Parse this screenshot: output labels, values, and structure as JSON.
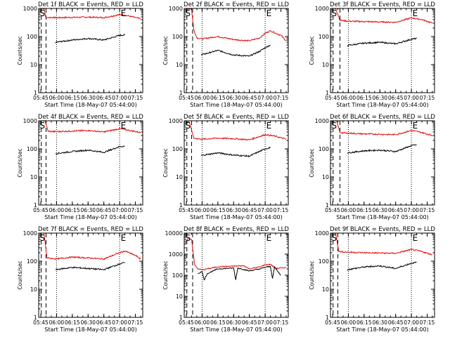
{
  "figure": {
    "xlabel_template": "Start Time ({date})",
    "x_ticks": [
      "05:45",
      "06:00",
      "06:15",
      "06:30",
      "06:45",
      "07:00",
      "07:15"
    ],
    "x_range": [
      "05:43",
      "07:22"
    ],
    "y_ticks": [
      "1",
      "10",
      "100",
      "1000"
    ],
    "ylabel": "Counts/sec",
    "colors": {
      "events": "#000000",
      "lld": "#e01010",
      "axes": "#000000"
    },
    "marker_s": "S",
    "marker_e": "E"
  },
  "chart_data": [
    {
      "type": "line",
      "title": "Det 1f BLACK = Events, RED = LLD",
      "date": "18-May-07 05:44:00",
      "yscale": "log",
      "ylim": [
        1,
        1000
      ],
      "x_range": [
        "05:43",
        "07:22"
      ],
      "x_ticks": [
        "05:45",
        "06:00",
        "06:15",
        "06:30",
        "06:45",
        "07:00",
        "07:15"
      ],
      "y_ticks": [
        "1",
        "10",
        "100",
        "1000"
      ],
      "dashed_lines": [
        "05:45:30",
        "05:50"
      ],
      "dotted_lines": [
        "06:00",
        "07:00"
      ],
      "marker_s_at": "05:44",
      "marker_e_at": "07:01",
      "series": [
        {
          "name": "LLD",
          "color": "#e01010",
          "x": [
            "05:44",
            "05:48",
            "05:50",
            "05:52",
            "06:00",
            "06:15",
            "06:30",
            "06:45",
            "07:00",
            "07:05",
            "07:15",
            "07:20"
          ],
          "y": [
            1000,
            1000,
            450,
            480,
            470,
            480,
            490,
            470,
            600,
            580,
            470,
            430
          ]
        },
        {
          "name": "Events",
          "color": "#000000",
          "x": [
            "05:59",
            "06:15",
            "06:30",
            "06:45",
            "07:00",
            "07:05"
          ],
          "y": [
            62,
            75,
            85,
            75,
            110,
            115
          ]
        }
      ]
    },
    {
      "type": "line",
      "title": "Det 2f BLACK = Events, RED = LLD",
      "date": "18-May-07 05:44:00",
      "yscale": "log",
      "ylim": [
        1,
        1000
      ],
      "x_range": [
        "05:43",
        "07:22"
      ],
      "x_ticks": [
        "05:45",
        "06:00",
        "06:15",
        "06:30",
        "06:45",
        "07:00",
        "07:15"
      ],
      "y_ticks": [
        "1",
        "10",
        "100",
        "1000"
      ],
      "dashed_lines": [
        "05:45:30",
        "05:51"
      ],
      "dotted_lines": [
        "06:00",
        "07:00"
      ],
      "marker_s_at": "05:44",
      "marker_e_at": "07:01",
      "series": [
        {
          "name": "LLD",
          "color": "#e01010",
          "x": [
            "05:44",
            "05:50",
            "05:52",
            "05:55",
            "06:00",
            "06:15",
            "06:30",
            "06:45",
            "06:55",
            "07:00",
            "07:05",
            "07:15",
            "07:20"
          ],
          "y": [
            1000,
            950,
            180,
            90,
            82,
            100,
            78,
            70,
            90,
            130,
            160,
            110,
            70
          ]
        },
        {
          "name": "Events",
          "color": "#000000",
          "x": [
            "05:59",
            "06:15",
            "06:30",
            "06:45",
            "06:55",
            "07:00",
            "07:05"
          ],
          "y": [
            22,
            32,
            22,
            20,
            30,
            40,
            50
          ]
        }
      ]
    },
    {
      "type": "line",
      "title": "Det 3f BLACK = Events, RED = LLD",
      "date": "18-May-07 05:44:00",
      "yscale": "log",
      "ylim": [
        1,
        1000
      ],
      "x_range": [
        "05:43",
        "07:22"
      ],
      "x_ticks": [
        "05:45",
        "06:00",
        "06:15",
        "06:30",
        "06:45",
        "07:00",
        "07:15"
      ],
      "y_ticks": [
        "1",
        "10",
        "100",
        "1000"
      ],
      "dashed_lines": [
        "05:45:30",
        "05:52"
      ],
      "dotted_lines": [
        "06:00",
        "07:00"
      ],
      "marker_s_at": "05:44",
      "marker_e_at": "07:01",
      "series": [
        {
          "name": "LLD",
          "color": "#e01010",
          "x": [
            "05:44",
            "05:48",
            "05:52",
            "06:00",
            "06:15",
            "06:30",
            "06:45",
            "07:00",
            "07:10",
            "07:20"
          ],
          "y": [
            1000,
            1000,
            380,
            350,
            340,
            330,
            320,
            460,
            400,
            300
          ]
        },
        {
          "name": "Events",
          "color": "#000000",
          "x": [
            "05:59",
            "06:15",
            "06:30",
            "06:45",
            "07:00",
            "07:05"
          ],
          "y": [
            48,
            58,
            62,
            55,
            80,
            85
          ]
        }
      ]
    },
    {
      "type": "line",
      "title": "Det 4f BLACK = Events, RED = LLD",
      "date": "18-May-07 05:44:00",
      "yscale": "log",
      "ylim": [
        1,
        1000
      ],
      "x_range": [
        "05:43",
        "07:22"
      ],
      "x_ticks": [
        "05:45",
        "06:00",
        "06:15",
        "06:30",
        "06:45",
        "07:00",
        "07:15"
      ],
      "y_ticks": [
        "1",
        "10",
        "100",
        "1000"
      ],
      "dashed_lines": [
        "05:45:30",
        "05:50"
      ],
      "dotted_lines": [
        "06:00",
        "07:00"
      ],
      "marker_s_at": "05:44",
      "marker_e_at": "07:01",
      "series": [
        {
          "name": "LLD",
          "color": "#e01010",
          "x": [
            "05:44",
            "05:49",
            "05:52",
            "06:00",
            "06:15",
            "06:30",
            "06:45",
            "07:00",
            "07:10",
            "07:20"
          ],
          "y": [
            1000,
            1000,
            420,
            410,
            430,
            450,
            400,
            520,
            450,
            380
          ]
        },
        {
          "name": "Events",
          "color": "#000000",
          "x": [
            "05:59",
            "06:15",
            "06:30",
            "06:45",
            "07:00",
            "07:05"
          ],
          "y": [
            68,
            80,
            90,
            75,
            120,
            125
          ]
        }
      ]
    },
    {
      "type": "line",
      "title": "Det 5f BLACK = Events, RED = LLD",
      "date": "18-May-07 05:44:00",
      "yscale": "log",
      "ylim": [
        1,
        1000
      ],
      "x_range": [
        "05:43",
        "07:22"
      ],
      "x_ticks": [
        "05:45",
        "06:00",
        "06:15",
        "06:30",
        "06:45",
        "07:00",
        "07:15"
      ],
      "y_ticks": [
        "1",
        "10",
        "100",
        "1000"
      ],
      "dashed_lines": [
        "05:45:30",
        "05:50"
      ],
      "dotted_lines": [
        "06:00",
        "07:00"
      ],
      "marker_s_at": "05:44",
      "marker_e_at": "07:01",
      "series": [
        {
          "name": "LLD",
          "color": "#e01010",
          "x": [
            "05:44",
            "05:48",
            "05:52",
            "06:00",
            "06:15",
            "06:30",
            "06:45",
            "07:00",
            "07:10",
            "07:20"
          ],
          "y": [
            1000,
            900,
            240,
            220,
            240,
            230,
            210,
            320,
            280,
            220
          ]
        },
        {
          "name": "Events",
          "color": "#000000",
          "x": [
            "05:59",
            "06:15",
            "06:30",
            "06:45",
            "07:00",
            "07:05"
          ],
          "y": [
            58,
            72,
            60,
            55,
            100,
            110
          ]
        }
      ]
    },
    {
      "type": "line",
      "title": "Det 6f BLACK = Events, RED = LLD",
      "date": "18-May-07 05:44:00",
      "yscale": "log",
      "ylim": [
        1,
        1000
      ],
      "x_range": [
        "05:43",
        "07:22"
      ],
      "x_ticks": [
        "05:45",
        "06:00",
        "06:15",
        "06:30",
        "06:45",
        "07:00",
        "07:15"
      ],
      "y_ticks": [
        "1",
        "10",
        "100",
        "1000"
      ],
      "dashed_lines": [
        "05:45:30",
        "05:52"
      ],
      "dotted_lines": [
        "06:00",
        "07:00"
      ],
      "marker_s_at": "05:44",
      "marker_e_at": "07:01",
      "series": [
        {
          "name": "LLD",
          "color": "#e01010",
          "x": [
            "05:44",
            "05:49",
            "05:52",
            "06:00",
            "06:15",
            "06:30",
            "06:45",
            "07:00",
            "07:10",
            "07:20"
          ],
          "y": [
            1000,
            950,
            380,
            360,
            340,
            330,
            320,
            450,
            380,
            300
          ]
        },
        {
          "name": "Events",
          "color": "#000000",
          "x": [
            "05:59",
            "06:15",
            "06:30",
            "06:45",
            "07:00",
            "07:05"
          ],
          "y": [
            72,
            85,
            90,
            80,
            130,
            140
          ]
        }
      ]
    },
    {
      "type": "line",
      "title": "Det 7f BLACK = Events, RED = LLD",
      "date": "18-May-07 05:44:00",
      "yscale": "log",
      "ylim": [
        1,
        1000
      ],
      "x_range": [
        "05:43",
        "07:22"
      ],
      "x_ticks": [
        "05:45",
        "06:00",
        "06:15",
        "06:30",
        "06:45",
        "07:00",
        "07:15"
      ],
      "y_ticks": [
        "1",
        "10",
        "100",
        "1000"
      ],
      "dashed_lines": [
        "05:45:30",
        "05:50"
      ],
      "dotted_lines": [
        "06:00",
        "07:00"
      ],
      "marker_s_at": "05:44",
      "marker_e_at": "07:01",
      "series": [
        {
          "name": "LLD",
          "color": "#e01010",
          "x": [
            "05:44",
            "05:48",
            "05:51",
            "06:00",
            "06:15",
            "06:30",
            "06:45",
            "07:00",
            "07:05",
            "07:15",
            "07:20"
          ],
          "y": [
            1000,
            1000,
            130,
            120,
            140,
            130,
            120,
            200,
            230,
            160,
            120
          ]
        },
        {
          "name": "Events",
          "color": "#000000",
          "x": [
            "05:59",
            "06:15",
            "06:30",
            "06:45",
            "07:00",
            "07:05"
          ],
          "y": [
            50,
            60,
            55,
            50,
            80,
            90
          ]
        }
      ]
    },
    {
      "type": "line",
      "title": "Det 8f BLACK = Events, RED = LLD",
      "date": "18-May-07 05:44:00",
      "yscale": "log",
      "ylim": [
        1,
        10000
      ],
      "x_range": [
        "05:43",
        "07:22"
      ],
      "x_ticks": [
        "05:45",
        "06:00",
        "06:15",
        "06:30",
        "06:45",
        "07:00",
        "07:15"
      ],
      "y_ticks": [
        "1",
        "10",
        "100",
        "1000",
        "10000"
      ],
      "dashed_lines": [
        "05:45:30",
        "05:51"
      ],
      "dotted_lines": [
        "06:00",
        "07:00"
      ],
      "marker_s_at": "05:44",
      "marker_e_at": "07:01",
      "series": [
        {
          "name": "LLD",
          "color": "#e01010",
          "x": [
            "05:44",
            "05:47",
            "05:50",
            "05:53",
            "05:56",
            "06:00",
            "06:15",
            "06:30",
            "06:40",
            "06:45",
            "06:55",
            "07:00",
            "07:05",
            "07:10",
            "07:20"
          ],
          "y": [
            3000,
            6000,
            5000,
            300,
            200,
            180,
            250,
            270,
            280,
            200,
            250,
            310,
            330,
            210,
            230
          ]
        },
        {
          "name": "Events",
          "color": "#000000",
          "x": [
            "05:56",
            "06:00",
            "06:02",
            "06:05",
            "06:15",
            "06:30",
            "06:32",
            "06:34",
            "06:45",
            "06:55",
            "07:00",
            "07:05",
            "07:07",
            "07:09",
            "07:12",
            "07:15"
          ],
          "y": [
            120,
            150,
            60,
            120,
            200,
            220,
            60,
            220,
            160,
            200,
            240,
            260,
            70,
            250,
            150,
            100
          ]
        }
      ]
    },
    {
      "type": "line",
      "title": "Det 9f BLACK = Events, RED = LLD",
      "date": "18-May-07 05:44:00",
      "yscale": "log",
      "ylim": [
        1,
        1000
      ],
      "x_range": [
        "05:43",
        "07:22"
      ],
      "x_ticks": [
        "05:45",
        "06:00",
        "06:15",
        "06:30",
        "06:45",
        "07:00",
        "07:15"
      ],
      "y_ticks": [
        "1",
        "10",
        "100",
        "1000"
      ],
      "dashed_lines": [
        "05:45:30",
        "05:50"
      ],
      "dotted_lines": [
        "06:00",
        "07:00"
      ],
      "marker_s_at": "05:44",
      "marker_e_at": "07:01",
      "series": [
        {
          "name": "LLD",
          "color": "#e01010",
          "x": [
            "05:44",
            "05:48",
            "05:51",
            "06:00",
            "06:15",
            "06:30",
            "06:45",
            "07:00",
            "07:10",
            "07:20"
          ],
          "y": [
            1000,
            1000,
            220,
            210,
            200,
            195,
            190,
            260,
            220,
            170
          ]
        },
        {
          "name": "Events",
          "color": "#000000",
          "x": [
            "05:59",
            "06:15",
            "06:30",
            "06:45",
            "07:00",
            "07:05"
          ],
          "y": [
            50,
            62,
            68,
            55,
            85,
            90
          ]
        }
      ]
    }
  ]
}
